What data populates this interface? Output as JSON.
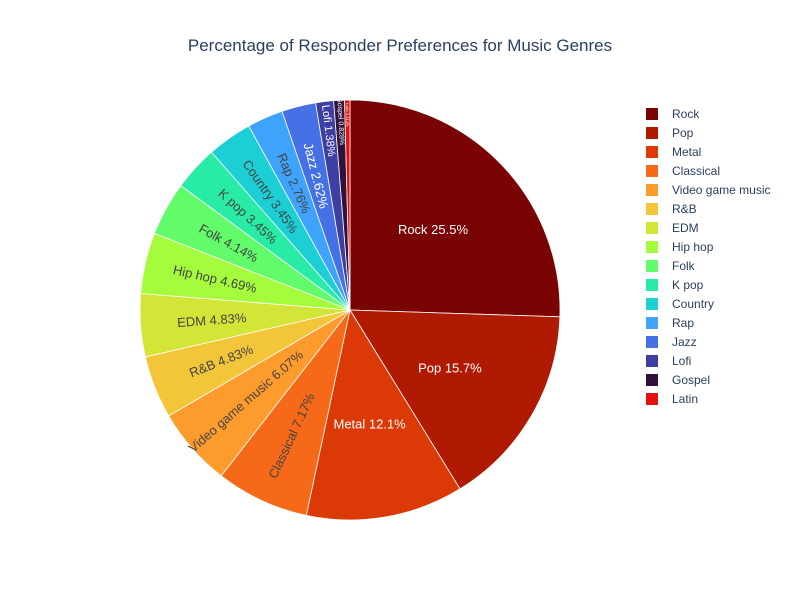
{
  "chart_data": {
    "type": "pie",
    "title": "Percentage of Responder Preferences for Music Genres",
    "legend_position": "right",
    "slices": [
      {
        "label": "Rock",
        "value": 25.5,
        "text": "Rock 25.5%",
        "color": "#7a0403"
      },
      {
        "label": "Pop",
        "value": 15.7,
        "text": "Pop 15.7%",
        "color": "#b01a02"
      },
      {
        "label": "Metal",
        "value": 12.1,
        "text": "Metal 12.1%",
        "color": "#db3a07"
      },
      {
        "label": "Classical",
        "value": 7.17,
        "text": "Classical 7.17%",
        "color": "#f56918"
      },
      {
        "label": "Video game music",
        "value": 6.07,
        "text": "Video game music 6.07%",
        "color": "#fe9b2d"
      },
      {
        "label": "R&B",
        "value": 4.83,
        "text": "R&B 4.83%",
        "color": "#f3c63a"
      },
      {
        "label": "EDM",
        "value": 4.83,
        "text": "EDM 4.83%",
        "color": "#d3e536"
      },
      {
        "label": "Hip hop",
        "value": 4.69,
        "text": "Hip hop 4.69%",
        "color": "#a4fc3c"
      },
      {
        "label": "Folk",
        "value": 4.14,
        "text": "Folk 4.14%",
        "color": "#62fc6b"
      },
      {
        "label": "K pop",
        "value": 3.45,
        "text": "K pop 3.45%",
        "color": "#28eca5"
      },
      {
        "label": "Country",
        "value": 3.45,
        "text": "Country 3.45%",
        "color": "#1bcfd4"
      },
      {
        "label": "Rap",
        "value": 2.76,
        "text": "Rap 2.76%",
        "color": "#3fa3fb"
      },
      {
        "label": "Jazz",
        "value": 2.62,
        "text": "Jazz 2.62%",
        "color": "#4671e6"
      },
      {
        "label": "Lofi",
        "value": 1.38,
        "text": "Lofi 1.38%",
        "color": "#3e3fa3"
      },
      {
        "label": "Gospel",
        "value": 0.828,
        "text": "Gospel 0.828%",
        "color": "#30123b"
      },
      {
        "label": "Latin",
        "value": 0.414,
        "text": "Latin 0.414%",
        "color": "#e3110f"
      }
    ]
  }
}
